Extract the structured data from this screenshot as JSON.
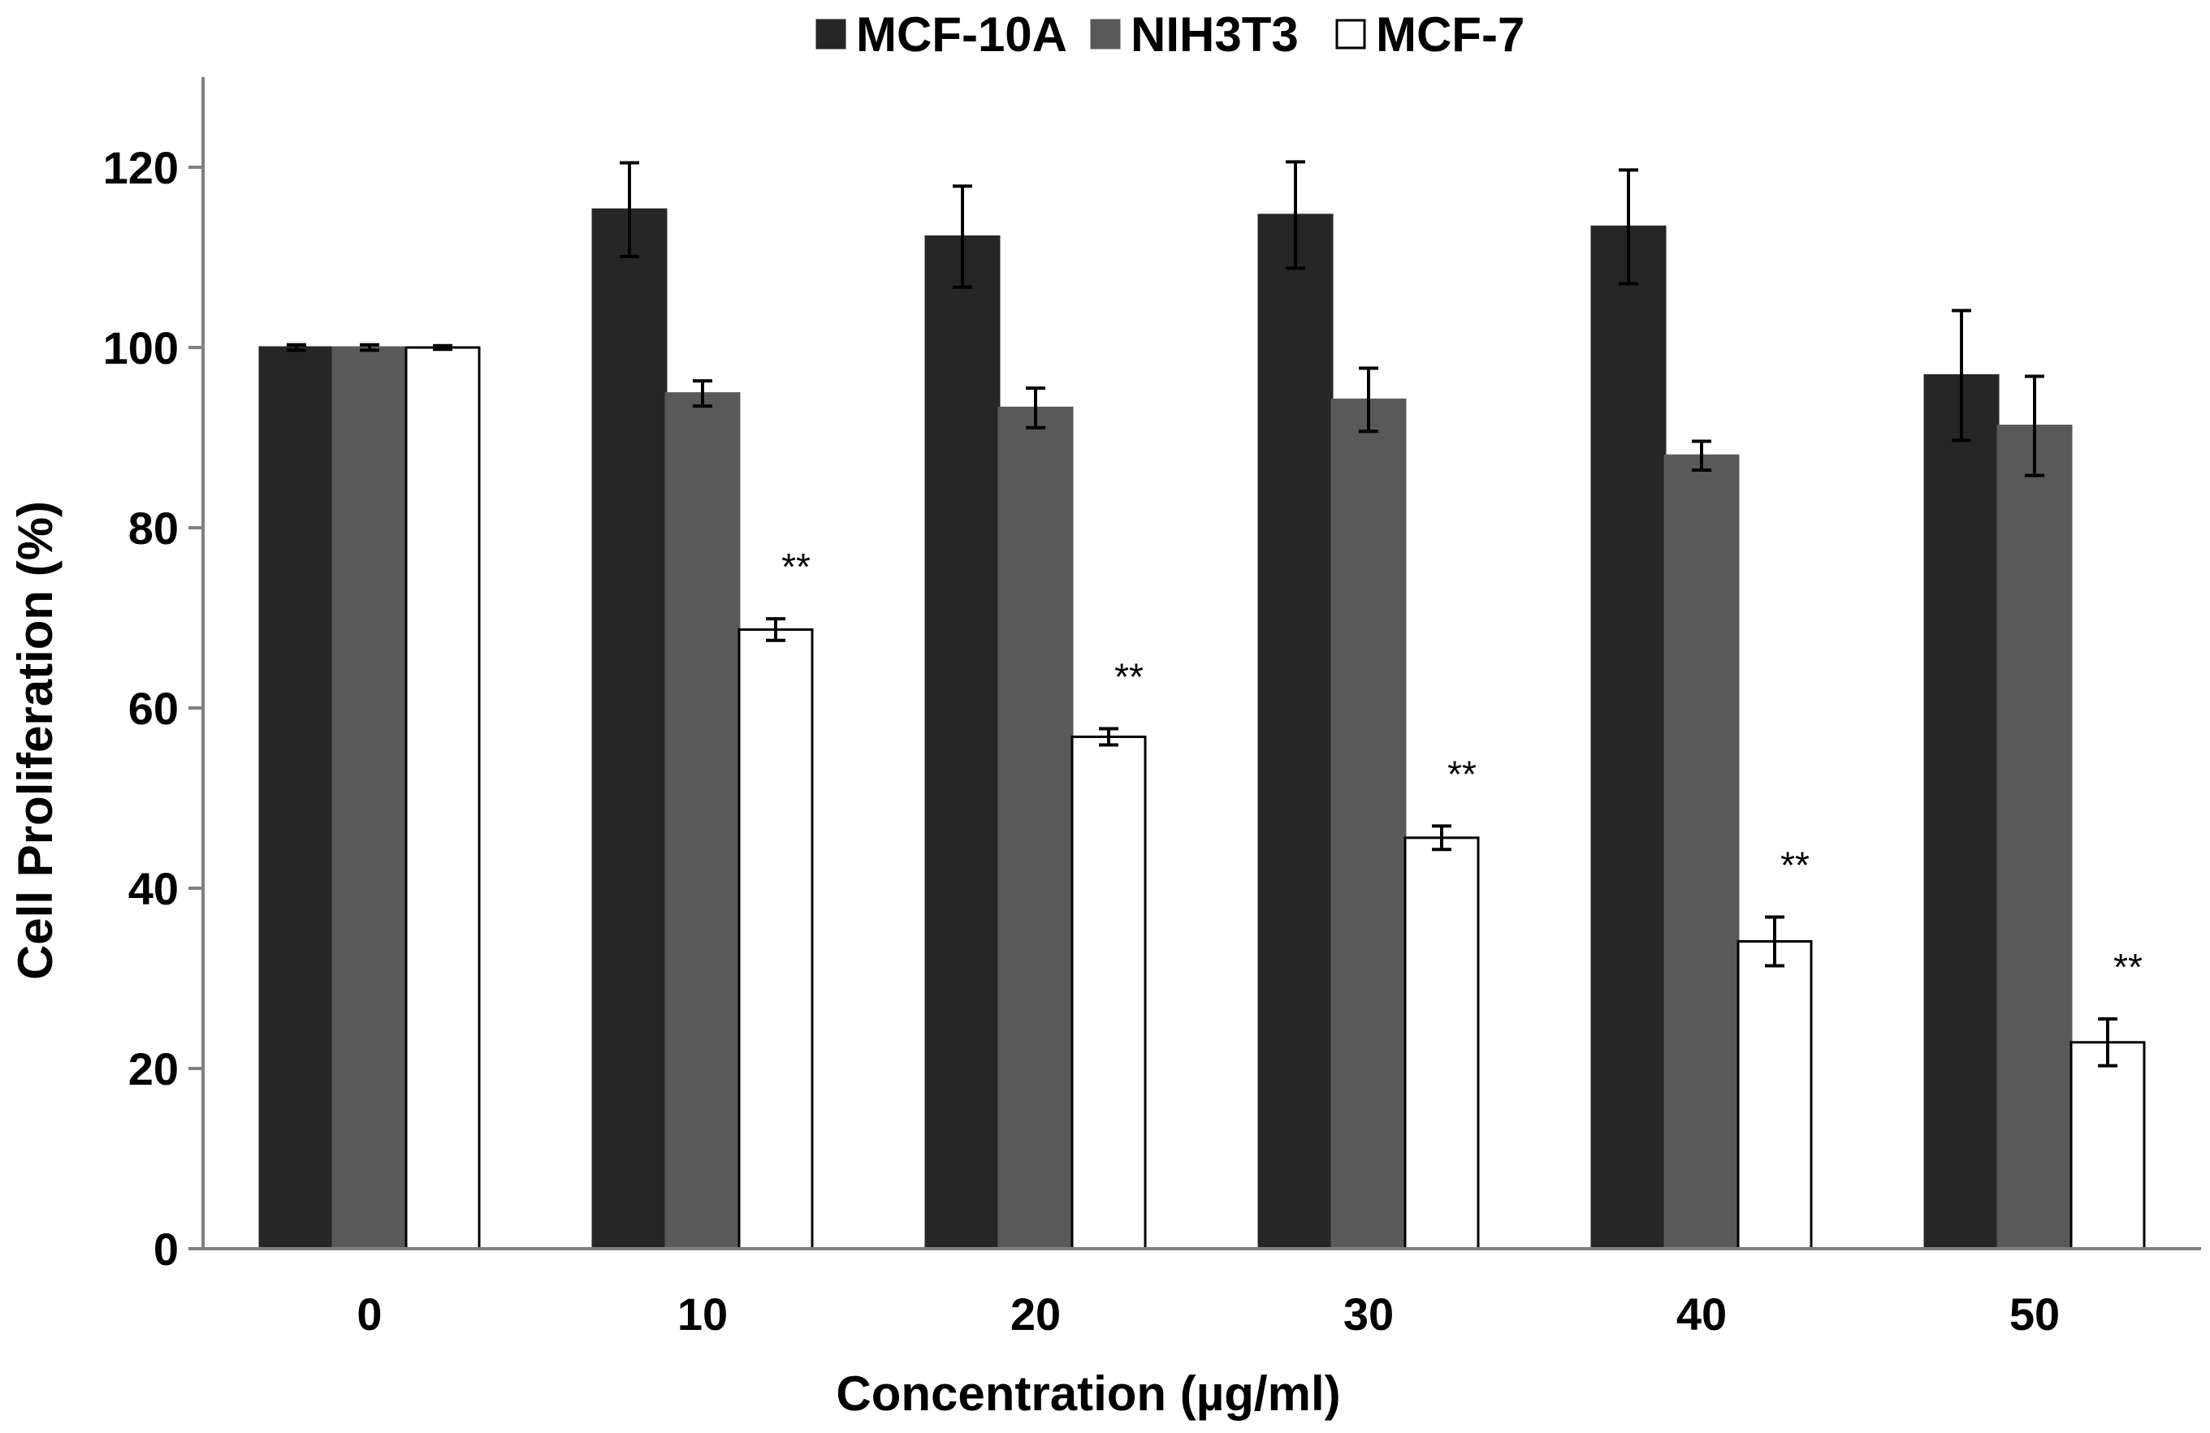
{
  "chart_data": {
    "type": "bar",
    "title": "",
    "xlabel": "Concentration (µg/ml)",
    "ylabel": "Cell Proliferation (%)",
    "ylim": [
      0,
      130
    ],
    "yticks": [
      0,
      20,
      40,
      60,
      80,
      100,
      120
    ],
    "grid": false,
    "legend": {
      "placement": "top-center"
    },
    "categories": [
      "0",
      "10",
      "20",
      "30",
      "40",
      "50"
    ],
    "series": [
      {
        "name": "MCF-10A",
        "color": "#262626",
        "values": [
          100,
          115.3,
          112.3,
          114.7,
          113.4,
          96.9
        ],
        "errors": [
          0.3,
          5.2,
          5.6,
          5.9,
          6.3,
          7.2
        ]
      },
      {
        "name": "NIH3T3",
        "color": "#595959",
        "values": [
          100,
          94.9,
          93.3,
          94.2,
          88.0,
          91.3
        ],
        "errors": [
          0.3,
          1.4,
          2.2,
          3.5,
          1.6,
          5.5
        ]
      },
      {
        "name": "MCF-7",
        "color": "#ffffff",
        "values": [
          100,
          68.7,
          56.8,
          45.6,
          34.1,
          22.9
        ],
        "errors": [
          0.2,
          1.2,
          0.9,
          1.3,
          2.7,
          2.6
        ]
      }
    ],
    "annotations": [
      {
        "text": "**",
        "category": "10",
        "series": "MCF-7"
      },
      {
        "text": "**",
        "category": "20",
        "series": "MCF-7"
      },
      {
        "text": "**",
        "category": "30",
        "series": "MCF-7"
      },
      {
        "text": "**",
        "category": "40",
        "series": "MCF-7"
      },
      {
        "text": "**",
        "category": "50",
        "series": "MCF-7"
      }
    ]
  }
}
